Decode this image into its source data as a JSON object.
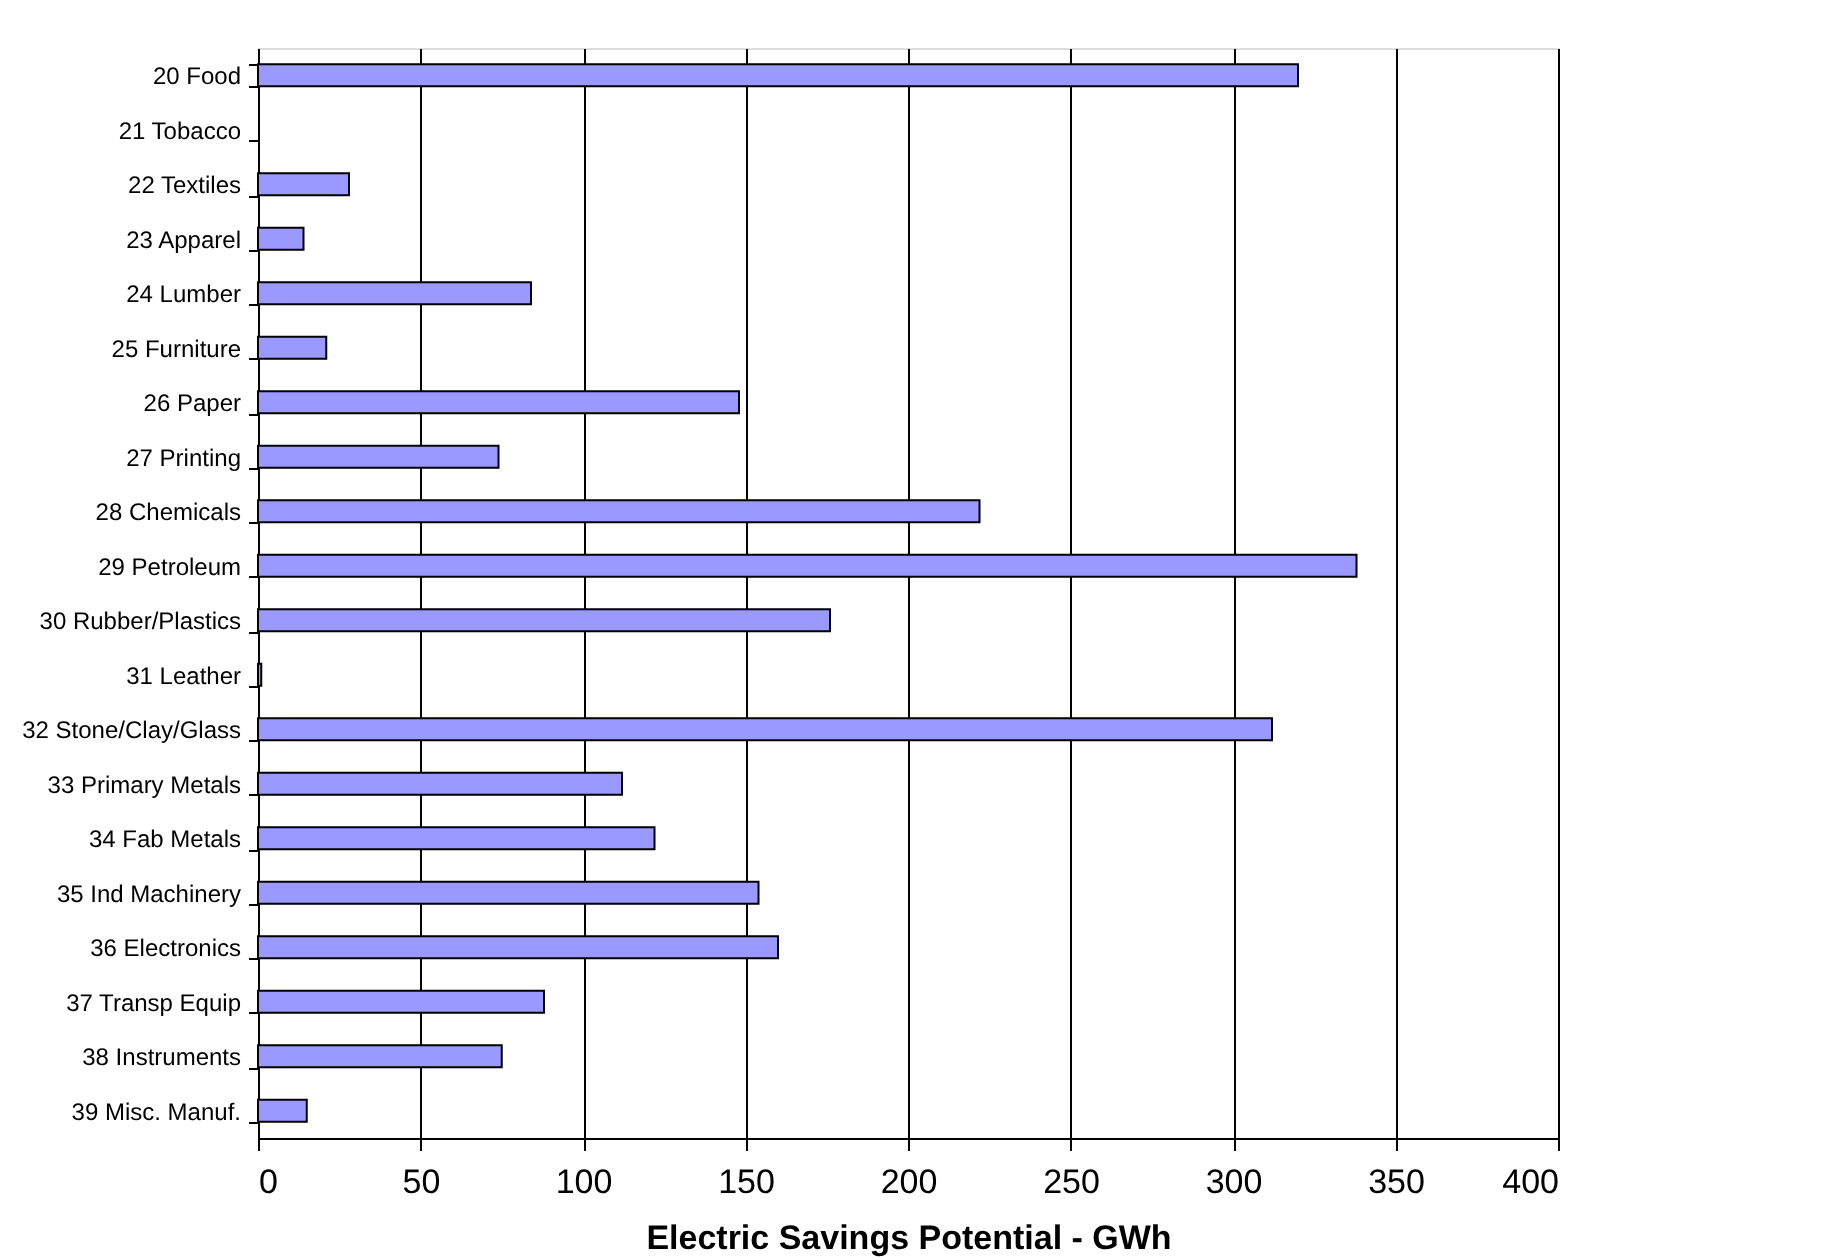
{
  "chart_data": {
    "type": "bar",
    "orientation": "horizontal",
    "xlabel": "Electric Savings Potential - GWh",
    "categories": [
      "20 Food",
      "21 Tobacco",
      "22 Textiles",
      "23 Apparel",
      "24 Lumber",
      "25 Furniture",
      "26 Paper",
      "27 Printing",
      "28 Chemicals",
      "29 Petroleum",
      "30 Rubber/Plastics",
      "31 Leather",
      "32 Stone/Clay/Glass",
      "33 Primary Metals",
      "34 Fab Metals",
      "35 Ind Machinery",
      "36 Electronics",
      "37 Transp Equip",
      "38 Instruments",
      "39 Misc. Manuf."
    ],
    "values": [
      320,
      null,
      28,
      14,
      84,
      21,
      148,
      74,
      222,
      338,
      176,
      1,
      312,
      112,
      122,
      154,
      160,
      88,
      75,
      15
    ],
    "color": "#9999ff",
    "xlim": [
      0,
      400
    ],
    "xticks": [
      0,
      50,
      100,
      150,
      200,
      250,
      300,
      350,
      400
    ],
    "grid": "x"
  }
}
